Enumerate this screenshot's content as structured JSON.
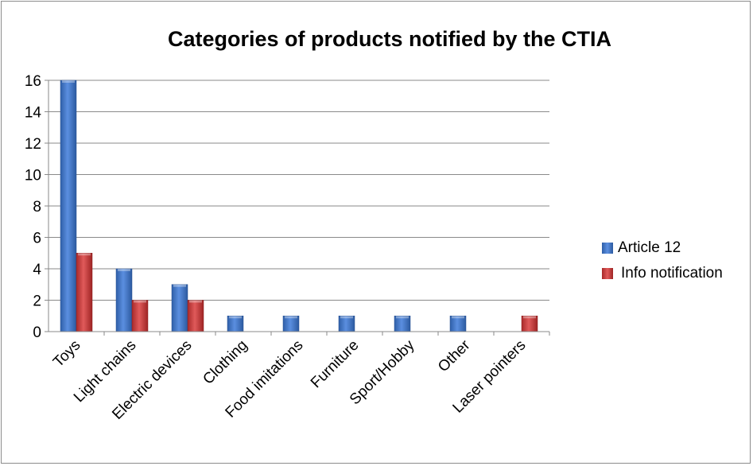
{
  "chart_data": {
    "type": "bar",
    "title": "Categories of products notified by the CTIA",
    "categories": [
      "Toys",
      "Light chains",
      "Electric devices",
      "Clothing",
      "Food imitations",
      "Furniture",
      "Sport/Hobby",
      "Other",
      "Laser pointers"
    ],
    "series": [
      {
        "name": "Article 12",
        "values": [
          16,
          4,
          3,
          1,
          1,
          1,
          1,
          1,
          0
        ],
        "color": "#3f74c4"
      },
      {
        "name": "Info notification",
        "values": [
          5,
          2,
          2,
          0,
          0,
          0,
          0,
          0,
          1
        ],
        "color": "#c8393a"
      }
    ],
    "ylim": [
      0,
      16
    ],
    "yticks": [
      0,
      2,
      4,
      6,
      8,
      10,
      12,
      14,
      16
    ],
    "grid": true,
    "legend_position": "right"
  }
}
